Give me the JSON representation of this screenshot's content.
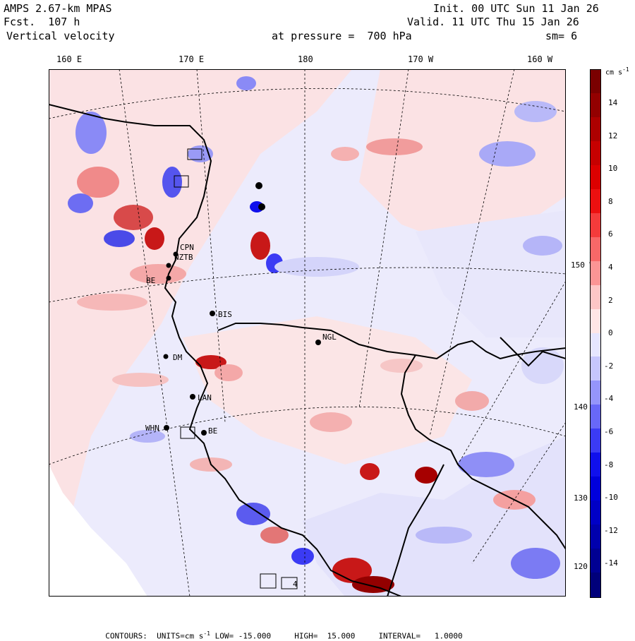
{
  "header": {
    "model": "AMPS 2.67-km MPAS",
    "forecast": "Fcst.  107 h",
    "field": "Vertical velocity",
    "init": "Init. 00 UTC Sun 11 Jan 26",
    "valid": "Valid. 11 UTC Thu 15 Jan 26",
    "pressure": "at pressure =  700 hPa",
    "smooth": "sm= 6"
  },
  "longitude_labels": [
    "160 E",
    "170 E",
    "180",
    "170 W",
    "160 W"
  ],
  "latitude_labels": [
    "150 W",
    "140 W",
    "130 W",
    "120 W"
  ],
  "stations": [
    "CPN",
    "NZTB",
    "BE",
    "BIS",
    "NGL",
    "DM",
    "LAN",
    "WHN",
    "BE",
    "4"
  ],
  "colorbar": {
    "units": "cm s",
    "units_exp": "-1",
    "ticks": [
      "14",
      "12",
      "10",
      "8",
      "6",
      "4",
      "2",
      "0",
      "-2",
      "-4",
      "-6",
      "-8",
      "-10",
      "-12",
      "-14"
    ],
    "colors": [
      "#7a0000",
      "#930000",
      "#ad0000",
      "#c60000",
      "#dc0000",
      "#ec1010",
      "#f43b3b",
      "#f86868",
      "#fb9595",
      "#fdc6c6",
      "#ffe6e6",
      "#e6e6ff",
      "#c6c6fd",
      "#9595fb",
      "#6868f8",
      "#3b3bf4",
      "#1010ec",
      "#0000dc",
      "#0000c6",
      "#0000ad",
      "#000093",
      "#00007a"
    ]
  },
  "footer": {
    "contours": "CONTOURS:",
    "units_label": "UNITS=cm s",
    "units_exp": "-1",
    "low": "LOW= -15.000",
    "high": "HIGH=  15.000",
    "interval": "INTERVAL=   1.0000"
  }
}
